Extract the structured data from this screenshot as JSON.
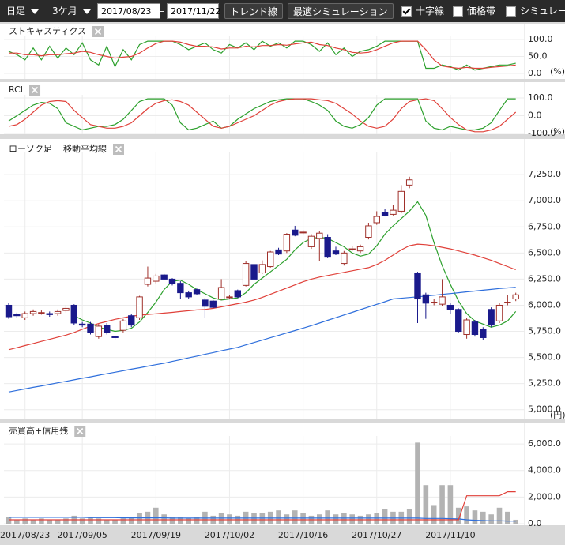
{
  "toolbar": {
    "period": "日足",
    "range": "3ケ月",
    "start_date": "2017/08/23",
    "separator": "—",
    "end_date": "2017/11/22",
    "buttons": [
      "トレンド線",
      "最適シミュレーション"
    ],
    "checkboxes": [
      {
        "label": "十字線",
        "checked": true
      },
      {
        "label": "価格帯",
        "checked": false
      },
      {
        "label": "シミュレー",
        "checked": false
      }
    ]
  },
  "chart_data": [
    {
      "type": "line",
      "title": "ストキャスティクス",
      "unit": "(%)",
      "ylim": [
        0,
        100
      ],
      "yticks": [
        {
          "value": 100,
          "label": "100.0"
        },
        {
          "value": 50,
          "label": "50.0"
        },
        {
          "value": 0,
          "label": "0.0"
        }
      ],
      "series": [
        {
          "color": "#2ca02c",
          "values": [
            65,
            55,
            40,
            75,
            40,
            80,
            45,
            75,
            55,
            90,
            40,
            25,
            80,
            20,
            70,
            40,
            85,
            95,
            95,
            95,
            95,
            85,
            70,
            80,
            90,
            70,
            60,
            85,
            75,
            90,
            70,
            95,
            80,
            90,
            75,
            95,
            95,
            85,
            65,
            90,
            55,
            75,
            50,
            65,
            70,
            80,
            95,
            95,
            95,
            95,
            95,
            15,
            15,
            25,
            20,
            10,
            25,
            10,
            15,
            20,
            25,
            25,
            30
          ]
        },
        {
          "color": "#e0413a",
          "values": [
            60,
            60,
            55,
            55,
            52,
            55,
            55,
            58,
            60,
            65,
            62,
            55,
            50,
            45,
            48,
            50,
            60,
            75,
            88,
            95,
            95,
            92,
            85,
            80,
            80,
            78,
            72,
            75,
            75,
            80,
            78,
            82,
            82,
            85,
            83,
            87,
            90,
            92,
            85,
            82,
            75,
            70,
            62,
            60,
            62,
            70,
            80,
            90,
            95,
            95,
            95,
            70,
            40,
            22,
            18,
            15,
            18,
            15,
            15,
            18,
            20,
            22,
            25
          ]
        }
      ]
    },
    {
      "type": "line",
      "title": "RCI",
      "unit": "(%)",
      "ylim": [
        -100,
        100
      ],
      "yticks": [
        {
          "value": 100,
          "label": "100.0"
        },
        {
          "value": 0,
          "label": "0.0"
        },
        {
          "value": -100,
          "label": "-100.0"
        }
      ],
      "series": [
        {
          "color": "#2ca02c",
          "values": [
            -30,
            0,
            30,
            60,
            75,
            70,
            40,
            -40,
            -60,
            -80,
            -70,
            -60,
            -60,
            -50,
            -20,
            30,
            80,
            95,
            95,
            95,
            60,
            -40,
            -80,
            -70,
            -50,
            -30,
            -70,
            -60,
            -20,
            10,
            40,
            60,
            80,
            90,
            95,
            95,
            95,
            80,
            60,
            30,
            -30,
            -60,
            -70,
            -50,
            -10,
            60,
            95,
            95,
            95,
            95,
            95,
            -30,
            -70,
            -80,
            -60,
            -70,
            -80,
            -80,
            -70,
            -40,
            30,
            95,
            95
          ]
        },
        {
          "color": "#e0413a",
          "values": [
            -60,
            -50,
            -20,
            20,
            60,
            80,
            85,
            80,
            30,
            -10,
            -50,
            -60,
            -70,
            -70,
            -60,
            -40,
            0,
            40,
            70,
            85,
            90,
            80,
            60,
            20,
            -20,
            -60,
            -70,
            -60,
            -40,
            -20,
            0,
            30,
            60,
            80,
            90,
            95,
            95,
            95,
            90,
            85,
            70,
            40,
            10,
            -30,
            -60,
            -70,
            -60,
            -20,
            40,
            80,
            90,
            95,
            85,
            40,
            -10,
            -50,
            -80,
            -90,
            -90,
            -80,
            -60,
            -20,
            20
          ]
        }
      ]
    },
    {
      "type": "candlestick",
      "title": "ローソク足",
      "subtitle": "移動平均線",
      "unit": "(円)",
      "ylim": [
        4930,
        7425
      ],
      "yticks": [
        {
          "value": 5000,
          "label": "5,000.0"
        },
        {
          "value": 5250,
          "label": "5,250.0"
        },
        {
          "value": 5500,
          "label": "5,500.0"
        },
        {
          "value": 5750,
          "label": "5,750.0"
        },
        {
          "value": 6000,
          "label": "6,000.0"
        },
        {
          "value": 6250,
          "label": "6,250.0"
        },
        {
          "value": 6500,
          "label": "6,500.0"
        },
        {
          "value": 6750,
          "label": "6,750.0"
        },
        {
          "value": 7000,
          "label": "7,000.0"
        },
        {
          "value": 7250,
          "label": "7,250.0"
        }
      ],
      "up_color": "#ffffff",
      "up_edge_color": "#a0302a",
      "down_color": "#1a1a8c",
      "open": [
        6000,
        5910,
        5880,
        5920,
        5930,
        5920,
        5920,
        5950,
        6000,
        5820,
        5820,
        5700,
        5810,
        5700,
        5760,
        5900,
        5880,
        6200,
        6230,
        6290,
        6250,
        6210,
        6120,
        6150,
        6050,
        6040,
        6060,
        6080,
        6140,
        6190,
        6390,
        6310,
        6370,
        6530,
        6520,
        6720,
        6700,
        6560,
        6640,
        6650,
        6520,
        6400,
        6540,
        6520,
        6650,
        6790,
        6890,
        6870,
        6900,
        7150,
        6310,
        6100,
        6030,
        6010,
        6000,
        5960,
        5720,
        5840,
        5770,
        5960,
        5850,
        6030,
        6060
      ],
      "high": [
        6020,
        5930,
        5940,
        5960,
        5950,
        5940,
        5960,
        6000,
        6010,
        5840,
        5840,
        5820,
        5830,
        5710,
        5870,
        5920,
        6090,
        6370,
        6300,
        6300,
        6260,
        6230,
        6140,
        6160,
        6070,
        6050,
        6250,
        6100,
        6150,
        6420,
        6400,
        6430,
        6520,
        6550,
        6690,
        6760,
        6720,
        6680,
        6710,
        6680,
        6560,
        6520,
        6570,
        6580,
        6790,
        6900,
        6920,
        6960,
        7150,
        7230,
        6320,
        6120,
        6060,
        6250,
        6020,
        5970,
        5880,
        5860,
        5790,
        5980,
        6020,
        6100,
        6120
      ],
      "low": [
        5870,
        5880,
        5860,
        5900,
        5910,
        5890,
        5900,
        5930,
        5810,
        5790,
        5720,
        5680,
        5720,
        5670,
        5740,
        5790,
        5860,
        6180,
        6210,
        6240,
        6190,
        6060,
        6060,
        6100,
        5880,
        5970,
        6050,
        6060,
        6070,
        6180,
        6240,
        6300,
        6360,
        6480,
        6500,
        6660,
        6680,
        6540,
        6420,
        6450,
        6480,
        6380,
        6520,
        6500,
        6630,
        6770,
        6850,
        6860,
        6880,
        7120,
        5830,
        5870,
        6000,
        5990,
        5920,
        5740,
        5680,
        5700,
        5670,
        5790,
        5830,
        6000,
        6040
      ],
      "close": [
        5890,
        5900,
        5920,
        5940,
        5930,
        5910,
        5940,
        5970,
        5830,
        5810,
        5740,
        5800,
        5740,
        5690,
        5850,
        5810,
        6080,
        6260,
        6280,
        6250,
        6210,
        6120,
        6080,
        6110,
        5990,
        5980,
        6170,
        6080,
        6080,
        6400,
        6250,
        6390,
        6510,
        6490,
        6680,
        6670,
        6700,
        6660,
        6690,
        6460,
        6490,
        6500,
        6540,
        6560,
        6760,
        6850,
        6860,
        6910,
        7090,
        7200,
        6060,
        6020,
        6030,
        6080,
        5960,
        5750,
        5860,
        5720,
        5690,
        5810,
        6000,
        6030,
        6100
      ],
      "series": [
        {
          "color": "#2ca02c",
          "values": [
            null,
            null,
            null,
            null,
            null,
            null,
            null,
            null,
            5900,
            5860,
            5830,
            5790,
            5770,
            5750,
            5760,
            5780,
            5840,
            5930,
            6030,
            6150,
            6230,
            6240,
            6200,
            6150,
            6110,
            6070,
            6050,
            6060,
            6070,
            6120,
            6200,
            6260,
            6320,
            6380,
            6440,
            6530,
            6600,
            6640,
            6650,
            6640,
            6600,
            6560,
            6500,
            6470,
            6490,
            6570,
            6680,
            6760,
            6830,
            6900,
            6990,
            6860,
            6600,
            6380,
            6200,
            6040,
            5920,
            5850,
            5820,
            5790,
            5810,
            5850,
            5940
          ]
        },
        {
          "color": "#e0413a",
          "values": [
            5574,
            5594,
            5614,
            5634,
            5654,
            5674,
            5694,
            5714,
            5740,
            5770,
            5800,
            5825,
            5845,
            5865,
            5880,
            5895,
            5905,
            5912,
            5918,
            5925,
            5932,
            5940,
            5948,
            5955,
            5960,
            5970,
            5985,
            6000,
            6015,
            6030,
            6050,
            6075,
            6105,
            6135,
            6165,
            6195,
            6225,
            6250,
            6270,
            6285,
            6300,
            6315,
            6330,
            6345,
            6360,
            6390,
            6430,
            6480,
            6530,
            6570,
            6585,
            6580,
            6570,
            6555,
            6540,
            6520,
            6500,
            6480,
            6455,
            6430,
            6400,
            6370,
            6340
          ]
        },
        {
          "color": "#2f6fdc",
          "values": [
            5170,
            5185,
            5199,
            5214,
            5228,
            5243,
            5257,
            5272,
            5286,
            5301,
            5315,
            5330,
            5344,
            5359,
            5373,
            5388,
            5402,
            5417,
            5431,
            5445,
            5462,
            5479,
            5496,
            5513,
            5530,
            5547,
            5564,
            5580,
            5597,
            5620,
            5643,
            5666,
            5689,
            5712,
            5735,
            5758,
            5781,
            5805,
            5830,
            5856,
            5881,
            5907,
            5932,
            5958,
            5983,
            6009,
            6034,
            6060,
            6067,
            6074,
            6081,
            6088,
            6096,
            6104,
            6112,
            6120,
            6128,
            6136,
            6144,
            6152,
            6160,
            6166,
            6172
          ]
        }
      ]
    },
    {
      "type": "bar",
      "title": "売買高+信用残",
      "ylim": [
        0,
        6420
      ],
      "yticks": [
        {
          "value": 0,
          "label": "0.0"
        },
        {
          "value": 2000,
          "label": "2,000.0"
        },
        {
          "value": 4000,
          "label": "4,000.0"
        },
        {
          "value": 6000,
          "label": "6,000.0"
        }
      ],
      "categories": [
        null,
        null,
        "2017/08/23",
        null,
        null,
        null,
        null,
        null,
        null,
        "2017/09/05",
        null,
        null,
        null,
        null,
        null,
        null,
        null,
        null,
        "2017/09/19",
        null,
        null,
        null,
        null,
        null,
        null,
        null,
        null,
        "2017/10/02",
        null,
        null,
        null,
        null,
        null,
        null,
        null,
        null,
        "2017/10/16",
        null,
        null,
        null,
        null,
        null,
        null,
        null,
        null,
        "2017/10/27",
        null,
        null,
        null,
        null,
        null,
        null,
        null,
        null,
        "2017/11/10",
        null,
        null,
        null,
        null,
        null,
        null,
        null,
        null
      ],
      "color": "#b3b3b3",
      "values": [
        500,
        300,
        400,
        300,
        400,
        300,
        300,
        400,
        600,
        400,
        500,
        400,
        300,
        300,
        400,
        500,
        800,
        900,
        1200,
        700,
        500,
        500,
        400,
        500,
        900,
        600,
        800,
        700,
        600,
        900,
        800,
        800,
        900,
        1000,
        700,
        1000,
        800,
        600,
        700,
        1000,
        700,
        800,
        700,
        600,
        700,
        800,
        1100,
        900,
        900,
        1100,
        6100,
        2900,
        1400,
        2900,
        2900,
        1200,
        1300,
        1000,
        900,
        700,
        1200,
        900,
        300
      ],
      "series": [
        {
          "color": "#2f6fdc",
          "values": [
            480,
            480,
            480,
            480,
            480,
            480,
            480,
            480,
            480,
            480,
            460,
            460,
            460,
            460,
            440,
            440,
            440,
            440,
            440,
            440,
            420,
            420,
            420,
            420,
            420,
            420,
            420,
            420,
            420,
            420,
            420,
            420,
            420,
            420,
            420,
            420,
            420,
            420,
            420,
            420,
            420,
            420,
            420,
            420,
            420,
            420,
            420,
            420,
            420,
            420,
            420,
            400,
            400,
            400,
            380,
            360,
            300,
            260,
            240,
            220,
            220,
            200,
            200
          ]
        },
        {
          "color": "#e0413a",
          "values": [
            300,
            300,
            300,
            300,
            300,
            300,
            300,
            300,
            300,
            300,
            300,
            300,
            300,
            300,
            300,
            300,
            300,
            300,
            300,
            300,
            300,
            300,
            300,
            300,
            300,
            300,
            300,
            300,
            300,
            300,
            300,
            300,
            300,
            300,
            300,
            300,
            300,
            300,
            300,
            300,
            300,
            300,
            300,
            300,
            300,
            300,
            300,
            300,
            300,
            300,
            300,
            300,
            300,
            300,
            300,
            300,
            2100,
            2100,
            2100,
            2100,
            2100,
            2400,
            2400
          ]
        }
      ]
    }
  ]
}
